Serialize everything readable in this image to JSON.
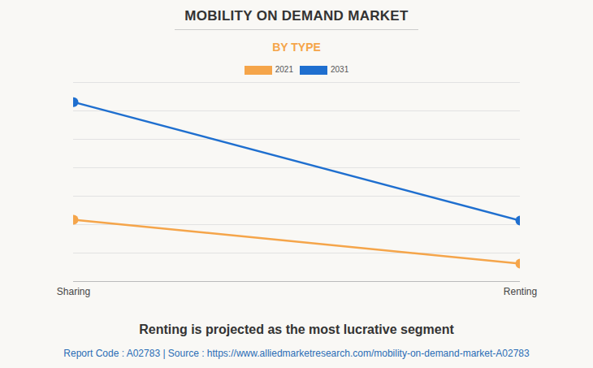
{
  "chart_data": {
    "type": "line",
    "title": "MOBILITY ON DEMAND MARKET",
    "subtitle": "BY TYPE",
    "subtitle_color": "#f5a54a",
    "caption": "Renting is projected as the most lucrative segment",
    "source": "Report Code : A02783  |  Source : https://www.alliedmarketresearch.com/mobility-on-demand-market-A02783",
    "categories": [
      "Sharing",
      "Renting"
    ],
    "series": [
      {
        "name": "2021",
        "color": "#f5a54a",
        "values": [
          2.17,
          0.63
        ]
      },
      {
        "name": "2031",
        "color": "#1f6fcf",
        "values": [
          6.31,
          2.14
        ]
      }
    ],
    "ylim": [
      0,
      7
    ],
    "yticks": [
      0,
      1,
      2,
      3,
      4,
      5,
      6,
      7
    ],
    "grid": true,
    "tick_labels": "x",
    "marker": "circle",
    "legend": "top"
  }
}
